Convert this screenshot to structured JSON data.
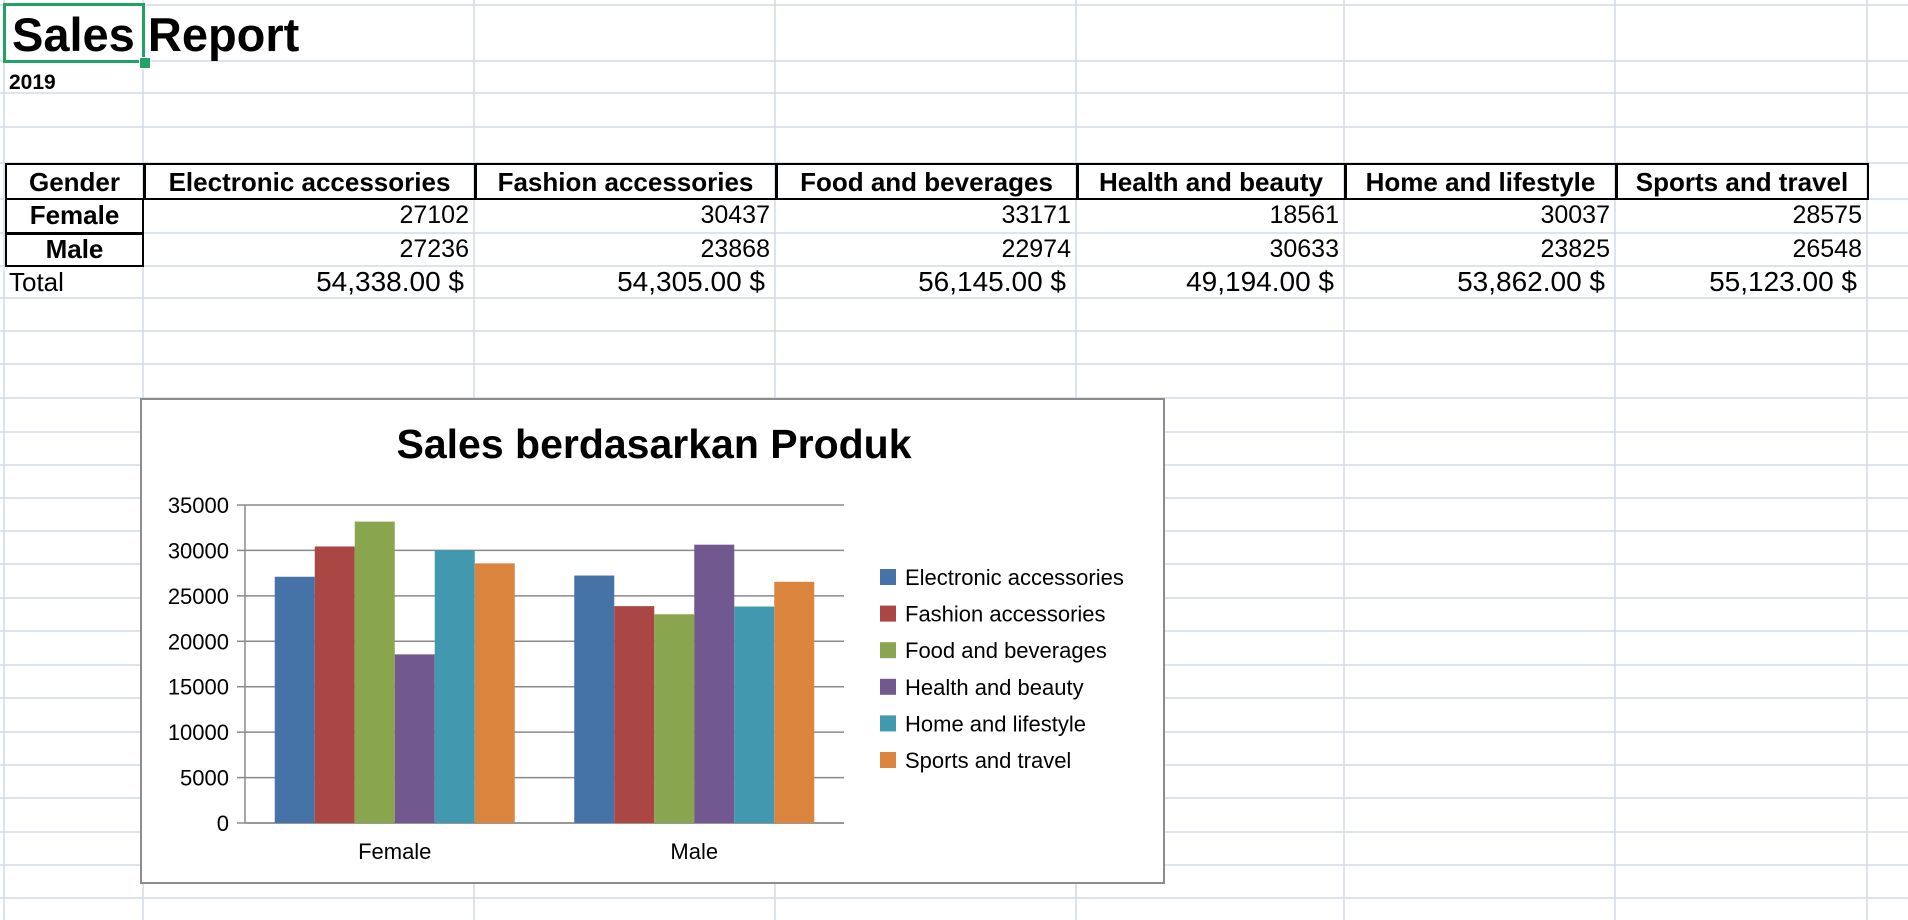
{
  "sheet": {
    "title_part1": "Sales",
    "title_part2": "Report",
    "year": "2019",
    "headers": [
      "Gender",
      "Electronic accessories",
      "Fashion accessories",
      "Food and beverages",
      "Health and beauty",
      "Home and lifestyle",
      "Sports and travel"
    ],
    "rows": [
      {
        "label": "Female",
        "values": [
          "27102",
          "30437",
          "33171",
          "18561",
          "30037",
          "28575"
        ]
      },
      {
        "label": "Male",
        "values": [
          "27236",
          "23868",
          "22974",
          "30633",
          "23825",
          "26548"
        ]
      }
    ],
    "total_label": "Total",
    "totals": [
      "54,338.00 $",
      "54,305.00 $",
      "56,145.00 $",
      "49,194.00 $",
      "53,862.00 $",
      "55,123.00 $"
    ],
    "colors": {
      "grid": "#d4dbe6",
      "selection": "#21a366"
    }
  },
  "chart_data": {
    "type": "bar",
    "title": "Sales berdasarkan Produk",
    "categories": [
      "Female",
      "Male"
    ],
    "series": [
      {
        "name": "Electronic accessories",
        "color": "#4572a7",
        "values": [
          27102,
          27236
        ]
      },
      {
        "name": "Fashion accessories",
        "color": "#aa4643",
        "values": [
          30437,
          23868
        ]
      },
      {
        "name": "Food and beverages",
        "color": "#89a54e",
        "values": [
          33171,
          22974
        ]
      },
      {
        "name": "Health and beauty",
        "color": "#71588f",
        "values": [
          18561,
          30633
        ]
      },
      {
        "name": "Home and lifestyle",
        "color": "#4198af",
        "values": [
          30037,
          23825
        ]
      },
      {
        "name": "Sports and travel",
        "color": "#db843d",
        "values": [
          28575,
          26548
        ]
      }
    ],
    "ylim": [
      0,
      35000
    ],
    "yticks": [
      0,
      5000,
      10000,
      15000,
      20000,
      25000,
      30000,
      35000
    ],
    "grid": true,
    "legend": "right"
  }
}
